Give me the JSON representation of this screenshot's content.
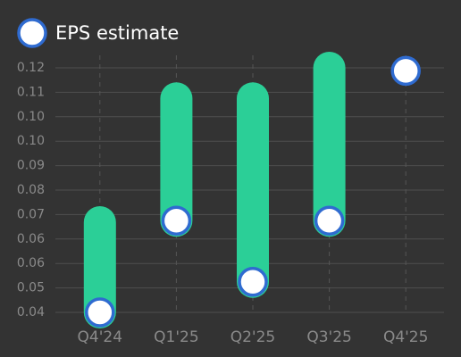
{
  "chart_data": {
    "type": "range-dot",
    "categories": [
      "Q4'24",
      "Q1'25",
      "Q2'25",
      "Q3'25",
      "Q4'25"
    ],
    "series": [
      {
        "name": "EPS estimate",
        "color": "#2f6bd0",
        "values": [
          0.04,
          0.07,
          0.05,
          0.07,
          0.119
        ]
      }
    ],
    "bar_high": [
      0.0695,
      0.11,
      0.11,
      0.12,
      null
    ],
    "bar_color": "#2bcf97",
    "ylim": [
      0.04,
      0.12
    ],
    "yticks": [
      0.04,
      {
        "value": 0.048,
        "label": "0.05"
      },
      {
        "value": 0.056,
        "label": "0.06"
      },
      {
        "value": 0.064,
        "label": "0.06"
      },
      {
        "value": 0.072,
        "label": "0.07"
      },
      0.08,
      {
        "value": 0.088,
        "label": "0.09"
      },
      {
        "value": 0.096,
        "label": "0.10"
      },
      {
        "value": 0.104,
        "label": "0.10"
      },
      {
        "value": 0.112,
        "label": "0.11"
      },
      0.12
    ],
    "grid": true
  }
}
